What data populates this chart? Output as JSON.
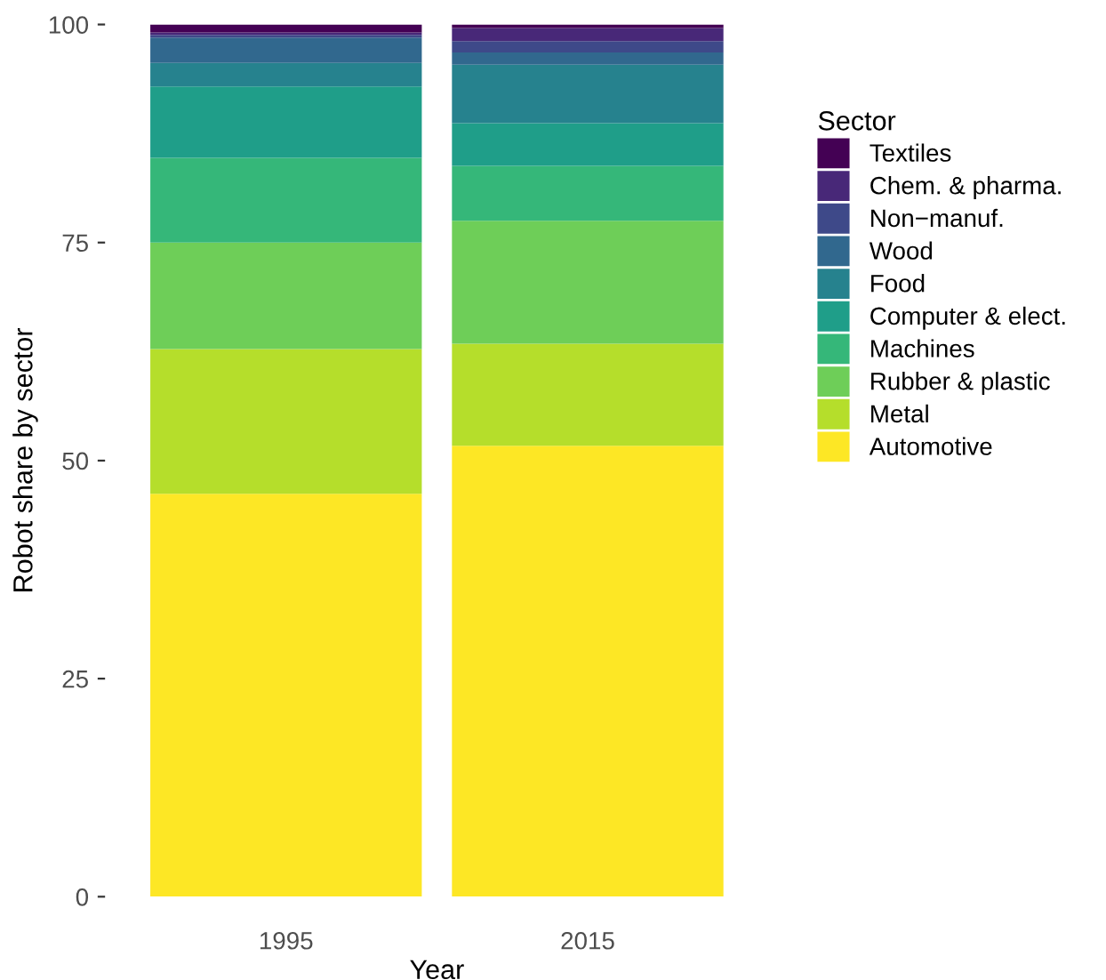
{
  "chart_data": {
    "type": "bar",
    "stacked": true,
    "xlabel": "Year",
    "ylabel": "Robot share by sector",
    "legend_title": "Sector",
    "legend": "right",
    "categories": [
      "1995",
      "2015"
    ],
    "ylim": [
      0,
      100
    ],
    "yticks": [
      0,
      25,
      50,
      75,
      100
    ],
    "grid": false,
    "series": [
      {
        "name": "Automotive",
        "color": "#fde725",
        "values": [
          46.2,
          51.7
        ]
      },
      {
        "name": "Metal",
        "color": "#b5de2b",
        "values": [
          16.6,
          11.7
        ]
      },
      {
        "name": "Rubber & plastic",
        "color": "#6ece58",
        "values": [
          12.2,
          14.1
        ]
      },
      {
        "name": "Machines",
        "color": "#35b779",
        "values": [
          9.7,
          6.3
        ]
      },
      {
        "name": "Computer & elect.",
        "color": "#1f9e89",
        "values": [
          8.2,
          4.9
        ]
      },
      {
        "name": "Food",
        "color": "#26828e",
        "values": [
          2.7,
          6.7
        ]
      },
      {
        "name": "Wood",
        "color": "#31688e",
        "values": [
          2.9,
          1.4
        ]
      },
      {
        "name": "Non−manuf.",
        "color": "#3e4989",
        "values": [
          0.3,
          1.3
        ]
      },
      {
        "name": "Chem. & pharma.",
        "color": "#482878",
        "values": [
          0.3,
          1.5
        ]
      },
      {
        "name": "Textiles",
        "color": "#440154",
        "values": [
          0.9,
          0.4
        ]
      }
    ]
  }
}
